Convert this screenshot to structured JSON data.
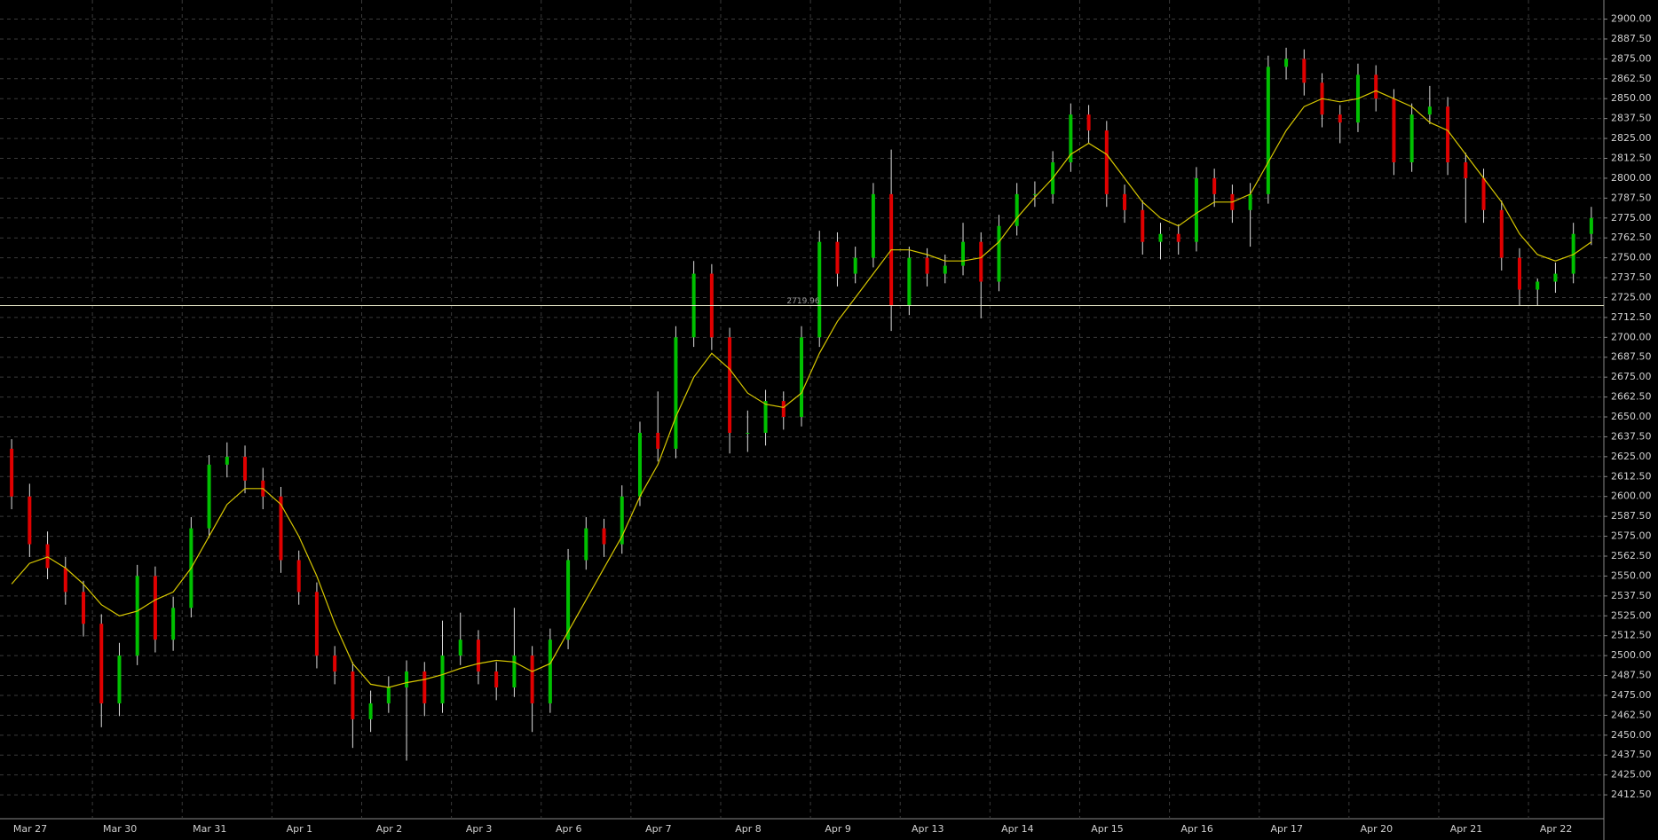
{
  "chart_data": {
    "type": "candlestick",
    "categories": [
      "Mar 27",
      "Mar 30",
      "Mar 31",
      "Apr 1",
      "Apr 2",
      "Apr 3",
      "Apr 6",
      "Apr 7",
      "Apr 8",
      "Apr 9",
      "Apr 13",
      "Apr 14",
      "Apr 15",
      "Apr 16",
      "Apr 17",
      "Apr 20",
      "Apr 21",
      "Apr 22"
    ],
    "candles_per_day": 5,
    "candles": [
      [
        2630,
        2636,
        2592,
        2600
      ],
      [
        2600,
        2608,
        2562,
        2570
      ],
      [
        2570,
        2578,
        2548,
        2555
      ],
      [
        2555,
        2562,
        2532,
        2540
      ],
      [
        2540,
        2547,
        2512,
        2520
      ],
      [
        2520,
        2526,
        2455,
        2470
      ],
      [
        2470,
        2508,
        2462,
        2500
      ],
      [
        2500,
        2557,
        2494,
        2550
      ],
      [
        2550,
        2556,
        2502,
        2510
      ],
      [
        2510,
        2537,
        2503,
        2530
      ],
      [
        2530,
        2587,
        2524,
        2580
      ],
      [
        2580,
        2626,
        2574,
        2620
      ],
      [
        2620,
        2634,
        2612,
        2625
      ],
      [
        2625,
        2632,
        2602,
        2610
      ],
      [
        2610,
        2618,
        2592,
        2600
      ],
      [
        2600,
        2606,
        2552,
        2560
      ],
      [
        2560,
        2566,
        2532,
        2540
      ],
      [
        2540,
        2546,
        2492,
        2500
      ],
      [
        2500,
        2506,
        2482,
        2490
      ],
      [
        2490,
        2496,
        2442,
        2460
      ],
      [
        2460,
        2478,
        2452,
        2470
      ],
      [
        2470,
        2487,
        2464,
        2480
      ],
      [
        2480,
        2497,
        2434,
        2490
      ],
      [
        2490,
        2496,
        2462,
        2470
      ],
      [
        2470,
        2522,
        2464,
        2500
      ],
      [
        2500,
        2527,
        2494,
        2510
      ],
      [
        2510,
        2516,
        2482,
        2490
      ],
      [
        2490,
        2496,
        2472,
        2480
      ],
      [
        2480,
        2530,
        2474,
        2500
      ],
      [
        2500,
        2506,
        2452,
        2470
      ],
      [
        2470,
        2517,
        2464,
        2510
      ],
      [
        2510,
        2567,
        2504,
        2560
      ],
      [
        2560,
        2587,
        2554,
        2580
      ],
      [
        2580,
        2586,
        2562,
        2570
      ],
      [
        2570,
        2607,
        2564,
        2600
      ],
      [
        2600,
        2647,
        2594,
        2640
      ],
      [
        2640,
        2666,
        2622,
        2630
      ],
      [
        2630,
        2707,
        2624,
        2700
      ],
      [
        2700,
        2748,
        2694,
        2740
      ],
      [
        2740,
        2746,
        2692,
        2700
      ],
      [
        2700,
        2706,
        2627,
        2640
      ],
      [
        2640,
        2654,
        2628,
        2640
      ],
      [
        2640,
        2667,
        2632,
        2660
      ],
      [
        2660,
        2666,
        2642,
        2650
      ],
      [
        2650,
        2707,
        2644,
        2700
      ],
      [
        2700,
        2767,
        2694,
        2760
      ],
      [
        2760,
        2766,
        2732,
        2740
      ],
      [
        2740,
        2757,
        2734,
        2750
      ],
      [
        2750,
        2797,
        2744,
        2790
      ],
      [
        2790,
        2818,
        2704,
        2720
      ],
      [
        2720,
        2757,
        2714,
        2750
      ],
      [
        2750,
        2756,
        2732,
        2740
      ],
      [
        2740,
        2752,
        2734,
        2745
      ],
      [
        2745,
        2772,
        2739,
        2760
      ],
      [
        2760,
        2766,
        2712,
        2735
      ],
      [
        2735,
        2777,
        2729,
        2770
      ],
      [
        2770,
        2797,
        2764,
        2790
      ],
      [
        2790,
        2798,
        2782,
        2790
      ],
      [
        2790,
        2817,
        2784,
        2810
      ],
      [
        2810,
        2847,
        2804,
        2840
      ],
      [
        2840,
        2846,
        2822,
        2830
      ],
      [
        2830,
        2836,
        2782,
        2790
      ],
      [
        2790,
        2796,
        2772,
        2780
      ],
      [
        2780,
        2786,
        2752,
        2760
      ],
      [
        2760,
        2772,
        2749,
        2765
      ],
      [
        2765,
        2771,
        2752,
        2760
      ],
      [
        2760,
        2807,
        2754,
        2800
      ],
      [
        2800,
        2806,
        2782,
        2790
      ],
      [
        2790,
        2796,
        2772,
        2780
      ],
      [
        2780,
        2797,
        2757,
        2790
      ],
      [
        2790,
        2877,
        2784,
        2870
      ],
      [
        2870,
        2882,
        2862,
        2875
      ],
      [
        2875,
        2881,
        2852,
        2860
      ],
      [
        2860,
        2866,
        2832,
        2840
      ],
      [
        2840,
        2846,
        2822,
        2835
      ],
      [
        2835,
        2872,
        2829,
        2865
      ],
      [
        2865,
        2871,
        2842,
        2850
      ],
      [
        2850,
        2856,
        2802,
        2810
      ],
      [
        2810,
        2847,
        2804,
        2840
      ],
      [
        2840,
        2858,
        2834,
        2845
      ],
      [
        2845,
        2851,
        2802,
        2810
      ],
      [
        2810,
        2816,
        2772,
        2800
      ],
      [
        2800,
        2806,
        2772,
        2780
      ],
      [
        2780,
        2786,
        2742,
        2750
      ],
      [
        2750,
        2756,
        2720,
        2730
      ],
      [
        2730,
        2737,
        2720,
        2735
      ],
      [
        2735,
        2747,
        2728,
        2740
      ],
      [
        2740,
        2772,
        2734,
        2765
      ],
      [
        2765,
        2782,
        2758,
        2775
      ]
    ],
    "ma": [
      2545,
      2558,
      2562,
      2555,
      2545,
      2532,
      2525,
      2528,
      2535,
      2540,
      2555,
      2575,
      2595,
      2605,
      2605,
      2595,
      2575,
      2550,
      2520,
      2495,
      2482,
      2480,
      2483,
      2485,
      2488,
      2492,
      2495,
      2497,
      2496,
      2490,
      2495,
      2515,
      2535,
      2555,
      2575,
      2600,
      2620,
      2650,
      2675,
      2690,
      2680,
      2665,
      2658,
      2656,
      2665,
      2690,
      2710,
      2725,
      2740,
      2755,
      2755,
      2752,
      2748,
      2748,
      2750,
      2760,
      2775,
      2788,
      2800,
      2815,
      2822,
      2815,
      2800,
      2785,
      2775,
      2770,
      2778,
      2785,
      2785,
      2790,
      2810,
      2830,
      2845,
      2850,
      2848,
      2850,
      2855,
      2850,
      2845,
      2835,
      2830,
      2815,
      2800,
      2785,
      2765,
      2752,
      2748,
      2752,
      2760
    ],
    "up_color": "#00c000",
    "down_color": "#e00000",
    "wick_color": "#dddddd",
    "ma_color": "#d8c800",
    "price_line": 2719.96,
    "ylim": [
      2397.5,
      2912
    ],
    "yticks": [
      {
        "value": 2412.5,
        "label": "2412.50"
      },
      {
        "value": 2425,
        "label": "2425.00"
      },
      {
        "value": 2437.5,
        "label": "2437.50"
      },
      {
        "value": 2450,
        "label": "2450.00"
      },
      {
        "value": 2462.5,
        "label": "2462.50"
      },
      {
        "value": 2475,
        "label": "2475.00"
      },
      {
        "value": 2487.5,
        "label": "2487.50"
      },
      {
        "value": 2500,
        "label": "2500.00"
      },
      {
        "value": 2512.5,
        "label": "2512.50"
      },
      {
        "value": 2525,
        "label": "2525.00"
      },
      {
        "value": 2537.5,
        "label": "2537.50"
      },
      {
        "value": 2550,
        "label": "2550.00"
      },
      {
        "value": 2562.5,
        "label": "2562.50"
      },
      {
        "value": 2575,
        "label": "2575.00"
      },
      {
        "value": 2587.5,
        "label": "2587.50"
      },
      {
        "value": 2600,
        "label": "2600.00"
      },
      {
        "value": 2612.5,
        "label": "2612.50"
      },
      {
        "value": 2625,
        "label": "2625.00"
      },
      {
        "value": 2637.5,
        "label": "2637.50"
      },
      {
        "value": 2650,
        "label": "2650.00"
      },
      {
        "value": 2662.5,
        "label": "2662.50"
      },
      {
        "value": 2675,
        "label": "2675.00"
      },
      {
        "value": 2687.5,
        "label": "2687.50"
      },
      {
        "value": 2700,
        "label": "2700.00"
      },
      {
        "value": 2712.5,
        "label": "2712.50"
      },
      {
        "value": 2725,
        "label": "2725.00"
      },
      {
        "value": 2737.5,
        "label": "2737.50"
      },
      {
        "value": 2750,
        "label": "2750.00"
      },
      {
        "value": 2762.5,
        "label": "2762.50"
      },
      {
        "value": 2775,
        "label": "2775.00"
      },
      {
        "value": 2787.5,
        "label": "2787.50"
      },
      {
        "value": 2800,
        "label": "2800.00"
      },
      {
        "value": 2812.5,
        "label": "2812.50"
      },
      {
        "value": 2825,
        "label": "2825.00"
      },
      {
        "value": 2837.5,
        "label": "2837.50"
      },
      {
        "value": 2850,
        "label": "2850.00"
      },
      {
        "value": 2862.5,
        "label": "2862.50"
      },
      {
        "value": 2875,
        "label": "2875.00"
      },
      {
        "value": 2887.5,
        "label": "2887.50"
      },
      {
        "value": 2900,
        "label": "2900.00"
      }
    ],
    "grid": true
  }
}
